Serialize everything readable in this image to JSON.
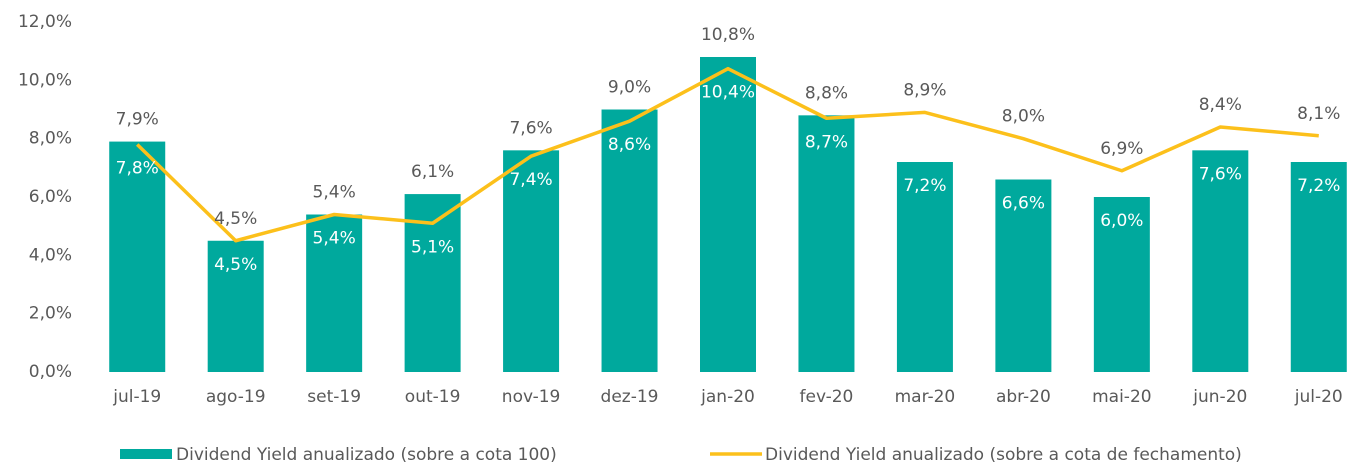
{
  "chart_data": {
    "type": "bar_line",
    "categories": [
      "jul-19",
      "ago-19",
      "set-19",
      "out-19",
      "nov-19",
      "dez-19",
      "jan-20",
      "fev-20",
      "mar-20",
      "abr-20",
      "mai-20",
      "jun-20",
      "jul-20"
    ],
    "series": [
      {
        "name": "Dividend Yield anualizado (sobre a cota 100)",
        "type": "bar",
        "color": "#00a99d",
        "values": [
          7.9,
          4.5,
          5.4,
          6.1,
          7.6,
          9.0,
          10.8,
          8.8,
          7.2,
          6.6,
          6.0,
          7.6,
          7.2
        ],
        "value_labels": [
          "7,9%",
          "4,5%",
          "5,4%",
          "6,1%",
          "7,6%",
          "9,0%",
          "10,8%",
          "8,8%",
          "7,2%",
          "6,6%",
          "6,0%",
          "7,6%",
          "7,2%"
        ]
      },
      {
        "name": "Dividend Yield anualizado (sobre a cota de fechamento)",
        "type": "line",
        "color": "#fcc01b",
        "values": [
          7.8,
          4.5,
          5.4,
          5.1,
          7.4,
          8.6,
          10.4,
          8.7,
          8.9,
          8.0,
          6.9,
          8.4,
          8.1
        ],
        "value_labels": [
          "7,8%",
          "4,5%",
          "5,4%",
          "5,1%",
          "7,4%",
          "8,6%",
          "10,4%",
          "8,7%",
          "8,9%",
          "8,0%",
          "6,9%",
          "8,4%",
          "8,1%"
        ]
      }
    ],
    "ylim": [
      0,
      12
    ],
    "yticks": [
      {
        "value": 0,
        "label": "0,0%"
      },
      {
        "value": 2,
        "label": "2,0%"
      },
      {
        "value": 4,
        "label": "4,0%"
      },
      {
        "value": 6,
        "label": "6,0%"
      },
      {
        "value": 8,
        "label": "8,0%"
      },
      {
        "value": 10,
        "label": "10,0%"
      },
      {
        "value": 12,
        "label": "12,0%"
      }
    ],
    "legend": "bottom"
  }
}
